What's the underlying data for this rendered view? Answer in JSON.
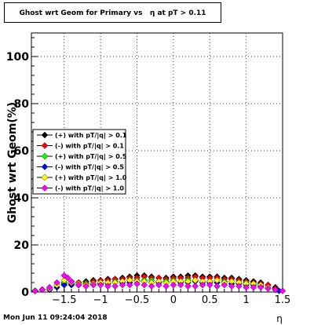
{
  "title": "Ghost wrt Geom for Primary vs   η at pT > 0.11",
  "timestamp": "Mon Jun 11 09:24:04 2018",
  "chart_data": {
    "type": "scatter",
    "xlabel": "η",
    "ylabel": "Ghost wrt Geom(%)",
    "xlim": [
      -1.95,
      1.5
    ],
    "ylim": [
      0,
      110
    ],
    "grid": true,
    "legend_position": "left-middle",
    "x_ticks": [
      -1.5,
      -1,
      -0.5,
      0,
      0.5,
      1,
      1.5
    ],
    "x_tick_labels": [
      "−1.5",
      "−1",
      "−0.5",
      "0",
      "0.5",
      "1",
      "1.5"
    ],
    "y_ticks": [
      0,
      20,
      40,
      60,
      80,
      100
    ],
    "y_tick_labels": [
      "0",
      "20",
      "40",
      "60",
      "80",
      "100"
    ],
    "series": [
      {
        "name": "(+) with pT/|q| > 0.1",
        "color": "#000000",
        "x": [
          -1.9,
          -1.8,
          -1.7,
          -1.6,
          -1.5,
          -1.4,
          -1.3,
          -1.2,
          -1.1,
          -1.0,
          -0.9,
          -0.8,
          -0.7,
          -0.6,
          -0.5,
          -0.4,
          -0.3,
          -0.2,
          -0.1,
          0.0,
          0.1,
          0.2,
          0.3,
          0.4,
          0.5,
          0.6,
          0.7,
          0.8,
          0.9,
          1.0,
          1.1,
          1.2,
          1.3,
          1.4
        ],
        "y": [
          0.5,
          1,
          1.5,
          3,
          4,
          4,
          4,
          4.5,
          5,
          5,
          5.5,
          5.5,
          6,
          6.5,
          7,
          7,
          6.5,
          6,
          6,
          6.5,
          6.5,
          7,
          7,
          6.5,
          6.5,
          6.5,
          6,
          6,
          5.5,
          5,
          4.5,
          4,
          3,
          2
        ]
      },
      {
        "name": "(-) with pT/|q| > 0.1",
        "color": "#ff0000",
        "x": [
          -1.9,
          -1.8,
          -1.7,
          -1.6,
          -1.5,
          -1.4,
          -1.3,
          -1.2,
          -1.1,
          -1.0,
          -0.9,
          -0.8,
          -0.7,
          -0.6,
          -0.5,
          -0.4,
          -0.3,
          -0.2,
          -0.1,
          0.0,
          0.1,
          0.2,
          0.3,
          0.4,
          0.5,
          0.6,
          0.7,
          0.8,
          0.9,
          1.0,
          1.1,
          1.2,
          1.3,
          1.4
        ],
        "y": [
          0.5,
          1,
          1.5,
          3,
          3.5,
          3.5,
          4,
          4,
          4.5,
          5,
          5,
          5.5,
          5.5,
          6,
          6,
          6.5,
          6,
          6,
          5.5,
          6,
          6,
          6,
          6.5,
          6,
          6,
          6,
          5.5,
          5.5,
          5,
          4.5,
          4,
          3.5,
          3,
          1.5
        ]
      },
      {
        "name": "(+) with pT/|q| > 0.5",
        "color": "#00ff00",
        "x": [
          -1.9,
          -1.8,
          -1.7,
          -1.6,
          -1.5,
          -1.4,
          -1.3,
          -1.2,
          -1.1,
          -1.0,
          -0.9,
          -0.8,
          -0.7,
          -0.6,
          -0.5,
          -0.4,
          -0.3,
          -0.2,
          -0.1,
          0.0,
          0.1,
          0.2,
          0.3,
          0.4,
          0.5,
          0.6,
          0.7,
          0.8,
          0.9,
          1.0,
          1.1,
          1.2,
          1.3,
          1.4
        ],
        "y": [
          0.5,
          1,
          1.5,
          3,
          4,
          3,
          3,
          3.5,
          3.5,
          4,
          4,
          4.5,
          4.5,
          5,
          5,
          5,
          5,
          4.5,
          4.5,
          5,
          4.5,
          5,
          5,
          4.5,
          4.5,
          5,
          4.5,
          4.5,
          4,
          4,
          3.5,
          3,
          2,
          1
        ]
      },
      {
        "name": "(-) with pT/|q| > 0.5",
        "color": "#0000ff",
        "x": [
          -1.9,
          -1.8,
          -1.7,
          -1.6,
          -1.5,
          -1.4,
          -1.3,
          -1.2,
          -1.1,
          -1.0,
          -0.9,
          -0.8,
          -0.7,
          -0.6,
          -0.5,
          -0.4,
          -0.3,
          -0.2,
          -0.1,
          0.0,
          0.1,
          0.2,
          0.3,
          0.4,
          0.5,
          0.6,
          0.7,
          0.8,
          0.9,
          1.0,
          1.1,
          1.2,
          1.3,
          1.4,
          1.45
        ],
        "y": [
          0.5,
          1,
          1,
          2,
          3,
          3,
          3,
          3,
          3.5,
          3.5,
          3.5,
          4,
          4,
          4,
          4.5,
          4.5,
          4,
          4,
          4,
          4.5,
          4,
          4,
          4.5,
          4,
          4,
          4,
          4,
          3.5,
          3.5,
          3,
          3,
          2.5,
          2,
          1,
          0.5
        ]
      },
      {
        "name": "(+) with pT/|q| > 1.0",
        "color": "#ffff00",
        "x": [
          -1.9,
          -1.8,
          -1.7,
          -1.6,
          -1.5,
          -1.4,
          -1.3,
          -1.2,
          -1.1,
          -1.0,
          -0.9,
          -0.8,
          -0.7,
          -0.6,
          -0.5,
          -0.4,
          -0.3,
          -0.2,
          -0.1,
          0.0,
          0.1,
          0.2,
          0.3,
          0.4,
          0.5,
          0.6,
          0.7,
          0.8,
          0.9,
          1.0,
          1.1,
          1.2,
          1.3,
          1.4
        ],
        "y": [
          0.5,
          1,
          1.5,
          3,
          5,
          4,
          3.5,
          3,
          3.5,
          4,
          4,
          4,
          4.5,
          5,
          4.5,
          4.5,
          4,
          4.5,
          4,
          4.5,
          4.5,
          4.5,
          5,
          4.5,
          4.5,
          5,
          4,
          4.5,
          4,
          3.5,
          3.5,
          3,
          2,
          1
        ]
      },
      {
        "name": "(-) with pT/|q| > 1.0",
        "color": "#ff00ff",
        "x": [
          -1.9,
          -1.8,
          -1.7,
          -1.6,
          -1.5,
          -1.45,
          -1.4,
          -1.3,
          -1.2,
          -1.1,
          -1.0,
          -0.9,
          -0.8,
          -0.7,
          -0.6,
          -0.5,
          -0.4,
          -0.3,
          -0.2,
          -0.1,
          0.0,
          0.1,
          0.2,
          0.3,
          0.4,
          0.5,
          0.6,
          0.7,
          0.8,
          0.9,
          1.0,
          1.1,
          1.2,
          1.3,
          1.4,
          1.5
        ],
        "y": [
          0.5,
          1,
          2,
          4,
          7,
          6,
          4.5,
          3,
          2.5,
          3,
          3,
          2.5,
          2.5,
          3,
          3,
          3.5,
          3,
          2.5,
          3,
          2.5,
          3,
          3,
          2.5,
          2.5,
          3,
          3,
          2.5,
          3,
          2.5,
          2.5,
          2,
          2,
          2,
          1.5,
          1,
          0.5
        ]
      }
    ]
  }
}
